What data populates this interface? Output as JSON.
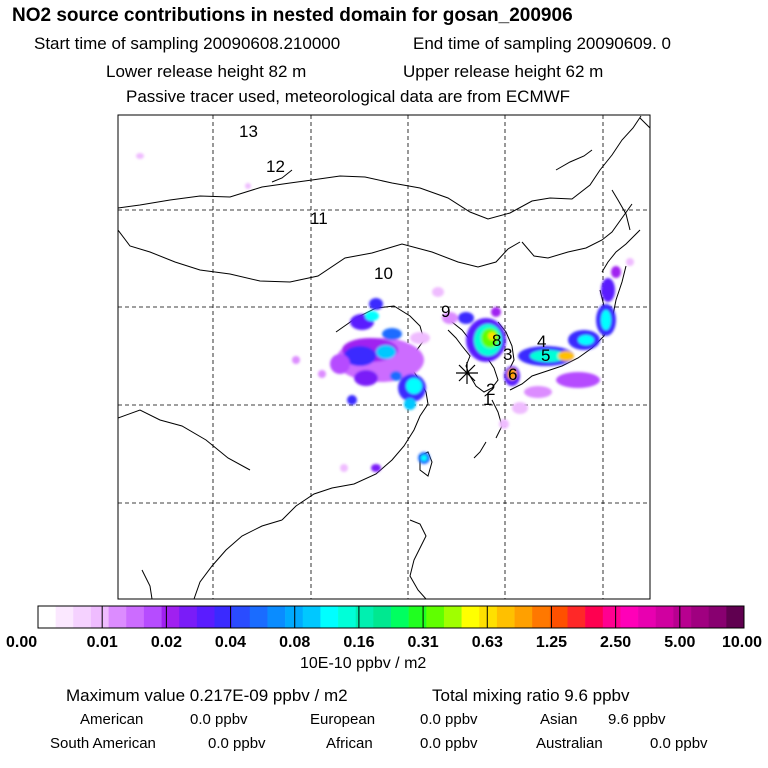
{
  "header": {
    "title": "NO2 source contributions in nested domain for gosan_200906",
    "start_time": "Start time of sampling 20090608.210000",
    "end_time": "End time of sampling 20090609.     0",
    "lower_release": "Lower release height   82 m",
    "upper_release": "Upper release height   62 m",
    "tracer_note": "Passive tracer used, meteorological data are from ECMWF"
  },
  "map": {
    "trajectory_labels": [
      "13",
      "12",
      "11",
      "10",
      "9",
      "8",
      "4",
      "3",
      "5",
      "6",
      "2",
      "1"
    ],
    "receptor": "gosan"
  },
  "colorbar": {
    "tick_labels": [
      "0.00",
      "0.01",
      "0.02",
      "0.04",
      "0.08",
      "0.16",
      "0.31",
      "0.63",
      "1.25",
      "2.50",
      "5.00",
      "10.00"
    ],
    "unit": "10E-10 ppbv / m2",
    "colors": [
      "#ffffff",
      "#fbe8ff",
      "#f5d2ff",
      "#efbcff",
      "#dc8cff",
      "#cc6cff",
      "#b64cff",
      "#a020f0",
      "#7a1cf8",
      "#5a1cff",
      "#3a2aff",
      "#2a4cff",
      "#1a6cff",
      "#0a8cff",
      "#00aaff",
      "#00c8ff",
      "#00ffff",
      "#00ffd8",
      "#00f0b0",
      "#00e890",
      "#00ff60",
      "#20ff20",
      "#60ff00",
      "#a0ff00",
      "#ffff00",
      "#ffe000",
      "#ffc000",
      "#ffa000",
      "#ff7800",
      "#ff5000",
      "#ff2828",
      "#ff0050",
      "#ff0090",
      "#ff00b8",
      "#e800b0",
      "#d000a0",
      "#b80090",
      "#a00080",
      "#880070",
      "#600050"
    ]
  },
  "summary": {
    "max_value": "Maximum value  0.217E-09 ppbv / m2",
    "total_mixing": "Total mixing ratio        9.6 ppbv",
    "regions": [
      {
        "name": "American",
        "value": "0.0 ppbv"
      },
      {
        "name": "European",
        "value": "0.0 ppbv"
      },
      {
        "name": "Asian",
        "value": "9.6 ppbv"
      },
      {
        "name": "South American",
        "value": "0.0 ppbv"
      },
      {
        "name": "African",
        "value": "0.0 ppbv"
      },
      {
        "name": "Australian",
        "value": "0.0 ppbv"
      }
    ]
  }
}
